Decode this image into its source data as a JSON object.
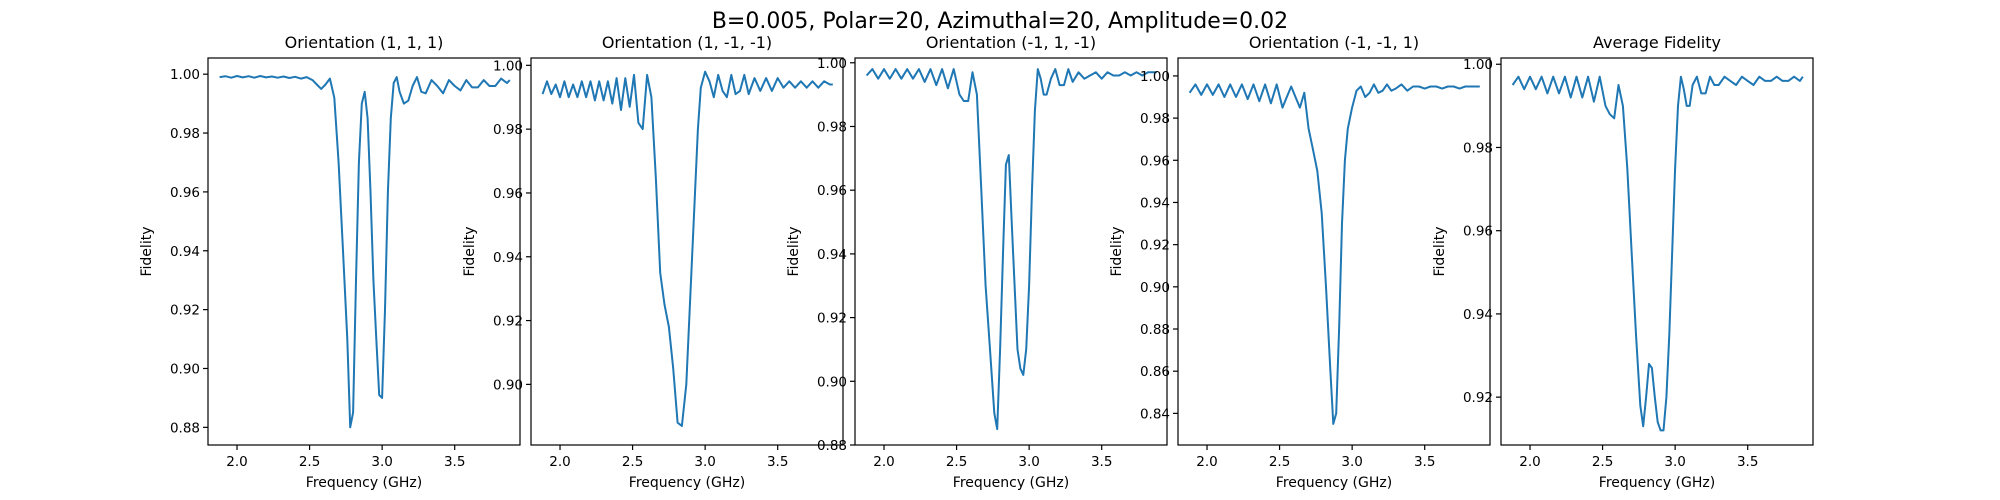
{
  "figure": {
    "suptitle": "B=0.005, Polar=20, Azimuthal=20, Amplitude=0.02"
  },
  "colors": {
    "series": "#1f77b4"
  },
  "chart_data": [
    {
      "type": "line",
      "title": "Orientation (1, 1, 1)",
      "xlabel": "Frequency (GHz)",
      "ylabel": "Fidelity",
      "xlim": [
        1.8,
        3.95
      ],
      "ylim": [
        0.874,
        1.0055
      ],
      "xticks": [
        2.0,
        2.5,
        3.0,
        3.5
      ],
      "xtick_labels": [
        "2.0",
        "2.5",
        "3.0",
        "3.5"
      ],
      "yticks": [
        0.88,
        0.9,
        0.92,
        0.94,
        0.96,
        0.98,
        1.0
      ],
      "ytick_labels": [
        "0.88",
        "0.90",
        "0.92",
        "0.94",
        "0.96",
        "0.98",
        "1.00"
      ],
      "grid": false,
      "x": [
        1.88,
        1.92,
        1.96,
        2.0,
        2.04,
        2.08,
        2.12,
        2.16,
        2.2,
        2.24,
        2.28,
        2.32,
        2.36,
        2.4,
        2.44,
        2.48,
        2.52,
        2.55,
        2.58,
        2.61,
        2.64,
        2.67,
        2.7,
        2.73,
        2.76,
        2.78,
        2.8,
        2.82,
        2.84,
        2.86,
        2.88,
        2.9,
        2.92,
        2.94,
        2.96,
        2.98,
        3.0,
        3.02,
        3.04,
        3.06,
        3.08,
        3.1,
        3.12,
        3.15,
        3.18,
        3.21,
        3.24,
        3.27,
        3.3,
        3.34,
        3.38,
        3.42,
        3.46,
        3.5,
        3.54,
        3.58,
        3.62,
        3.66,
        3.7,
        3.74,
        3.78,
        3.82,
        3.86,
        3.88
      ],
      "y": [
        0.999,
        0.9993,
        0.9988,
        0.9994,
        0.9989,
        0.9993,
        0.9988,
        0.9994,
        0.9989,
        0.9992,
        0.9988,
        0.9992,
        0.9987,
        0.9991,
        0.9985,
        0.999,
        0.998,
        0.9965,
        0.995,
        0.9965,
        0.9985,
        0.992,
        0.97,
        0.94,
        0.91,
        0.88,
        0.885,
        0.93,
        0.97,
        0.99,
        0.994,
        0.985,
        0.96,
        0.93,
        0.91,
        0.891,
        0.89,
        0.92,
        0.96,
        0.985,
        0.997,
        0.999,
        0.994,
        0.99,
        0.991,
        0.996,
        0.999,
        0.994,
        0.9935,
        0.998,
        0.996,
        0.9935,
        0.998,
        0.996,
        0.9945,
        0.998,
        0.9955,
        0.9955,
        0.998,
        0.996,
        0.996,
        0.9985,
        0.997,
        0.998
      ]
    },
    {
      "type": "line",
      "title": "Orientation (1, -1, -1)",
      "xlabel": "Frequency (GHz)",
      "ylabel": "Fidelity",
      "xlim": [
        1.8,
        3.95
      ],
      "ylim": [
        0.881,
        1.0023
      ],
      "xticks": [
        2.0,
        2.5,
        3.0,
        3.5
      ],
      "xtick_labels": [
        "2.0",
        "2.5",
        "3.0",
        "3.5"
      ],
      "yticks": [
        0.9,
        0.92,
        0.94,
        0.96,
        0.98,
        1.0
      ],
      "ytick_labels": [
        "0.90",
        "0.92",
        "0.94",
        "0.96",
        "0.98",
        "1.00"
      ],
      "grid": false,
      "x": [
        1.88,
        1.91,
        1.94,
        1.97,
        2.0,
        2.03,
        2.06,
        2.09,
        2.12,
        2.15,
        2.18,
        2.21,
        2.24,
        2.27,
        2.3,
        2.33,
        2.36,
        2.39,
        2.42,
        2.45,
        2.48,
        2.51,
        2.54,
        2.57,
        2.6,
        2.63,
        2.66,
        2.69,
        2.72,
        2.75,
        2.78,
        2.81,
        2.84,
        2.87,
        2.89,
        2.91,
        2.93,
        2.95,
        2.97,
        3.0,
        3.03,
        3.06,
        3.09,
        3.12,
        3.15,
        3.18,
        3.21,
        3.24,
        3.27,
        3.3,
        3.34,
        3.38,
        3.42,
        3.46,
        3.5,
        3.54,
        3.58,
        3.62,
        3.66,
        3.7,
        3.74,
        3.78,
        3.82,
        3.86,
        3.88
      ],
      "y": [
        0.991,
        0.995,
        0.991,
        0.994,
        0.99,
        0.995,
        0.99,
        0.994,
        0.99,
        0.995,
        0.99,
        0.995,
        0.989,
        0.995,
        0.989,
        0.995,
        0.988,
        0.996,
        0.986,
        0.996,
        0.987,
        0.997,
        0.982,
        0.98,
        0.997,
        0.99,
        0.965,
        0.935,
        0.925,
        0.918,
        0.905,
        0.888,
        0.887,
        0.9,
        0.92,
        0.94,
        0.96,
        0.98,
        0.993,
        0.998,
        0.995,
        0.99,
        0.997,
        0.992,
        0.99,
        0.997,
        0.991,
        0.992,
        0.997,
        0.991,
        0.996,
        0.992,
        0.996,
        0.992,
        0.996,
        0.993,
        0.995,
        0.993,
        0.995,
        0.993,
        0.995,
        0.993,
        0.995,
        0.994,
        0.994
      ]
    },
    {
      "type": "line",
      "title": "Orientation (-1, 1, -1)",
      "xlabel": "Frequency (GHz)",
      "ylabel": "Fidelity",
      "xlim": [
        1.8,
        3.95
      ],
      "ylim": [
        0.88,
        1.0015
      ],
      "xticks": [
        2.0,
        2.5,
        3.0,
        3.5
      ],
      "xtick_labels": [
        "2.0",
        "2.5",
        "3.0",
        "3.5"
      ],
      "yticks": [
        0.88,
        0.9,
        0.92,
        0.94,
        0.96,
        0.98,
        1.0
      ],
      "ytick_labels": [
        "0.88",
        "0.90",
        "0.92",
        "0.94",
        "0.96",
        "0.98",
        "1.00"
      ],
      "grid": false,
      "x": [
        1.88,
        1.92,
        1.96,
        2.0,
        2.04,
        2.08,
        2.12,
        2.16,
        2.2,
        2.24,
        2.28,
        2.32,
        2.36,
        2.4,
        2.44,
        2.48,
        2.52,
        2.55,
        2.58,
        2.61,
        2.64,
        2.67,
        2.7,
        2.73,
        2.76,
        2.78,
        2.8,
        2.82,
        2.84,
        2.86,
        2.88,
        2.9,
        2.92,
        2.94,
        2.96,
        2.98,
        3.0,
        3.02,
        3.04,
        3.06,
        3.08,
        3.1,
        3.12,
        3.15,
        3.18,
        3.21,
        3.24,
        3.27,
        3.3,
        3.34,
        3.38,
        3.42,
        3.46,
        3.5,
        3.54,
        3.58,
        3.62,
        3.66,
        3.7,
        3.74,
        3.78,
        3.82,
        3.86,
        3.88
      ],
      "y": [
        0.996,
        0.998,
        0.995,
        0.998,
        0.995,
        0.998,
        0.995,
        0.998,
        0.995,
        0.998,
        0.994,
        0.998,
        0.993,
        0.998,
        0.992,
        0.998,
        0.99,
        0.988,
        0.988,
        0.997,
        0.99,
        0.96,
        0.93,
        0.91,
        0.89,
        0.885,
        0.91,
        0.94,
        0.968,
        0.971,
        0.95,
        0.93,
        0.91,
        0.904,
        0.902,
        0.91,
        0.93,
        0.96,
        0.985,
        0.998,
        0.995,
        0.99,
        0.99,
        0.995,
        0.998,
        0.993,
        0.993,
        0.998,
        0.994,
        0.997,
        0.995,
        0.996,
        0.997,
        0.995,
        0.997,
        0.996,
        0.996,
        0.997,
        0.996,
        0.997,
        0.996,
        0.997,
        0.997,
        0.997
      ]
    },
    {
      "type": "line",
      "title": "Orientation (-1, -1, 1)",
      "xlabel": "Frequency (GHz)",
      "ylabel": "Fidelity",
      "xlim": [
        1.8,
        3.95
      ],
      "ylim": [
        0.825,
        1.0085
      ],
      "xticks": [
        2.0,
        2.5,
        3.0,
        3.5
      ],
      "xtick_labels": [
        "2.0",
        "2.5",
        "3.0",
        "3.5"
      ],
      "yticks": [
        0.84,
        0.86,
        0.88,
        0.9,
        0.92,
        0.94,
        0.96,
        0.98,
        1.0
      ],
      "ytick_labels": [
        "0.84",
        "0.86",
        "0.88",
        "0.90",
        "0.92",
        "0.94",
        "0.96",
        "0.98",
        "1.00"
      ],
      "grid": false,
      "x": [
        1.88,
        1.92,
        1.96,
        2.0,
        2.04,
        2.08,
        2.12,
        2.16,
        2.2,
        2.24,
        2.28,
        2.32,
        2.36,
        2.4,
        2.44,
        2.48,
        2.52,
        2.55,
        2.58,
        2.61,
        2.64,
        2.67,
        2.7,
        2.73,
        2.76,
        2.79,
        2.82,
        2.85,
        2.87,
        2.89,
        2.91,
        2.93,
        2.95,
        2.97,
        3.0,
        3.03,
        3.06,
        3.09,
        3.12,
        3.15,
        3.18,
        3.21,
        3.24,
        3.27,
        3.3,
        3.34,
        3.38,
        3.42,
        3.46,
        3.5,
        3.54,
        3.58,
        3.62,
        3.66,
        3.7,
        3.74,
        3.78,
        3.82,
        3.86,
        3.88
      ],
      "y": [
        0.992,
        0.996,
        0.991,
        0.996,
        0.991,
        0.996,
        0.99,
        0.996,
        0.99,
        0.996,
        0.989,
        0.996,
        0.988,
        0.996,
        0.987,
        0.996,
        0.985,
        0.99,
        0.995,
        0.99,
        0.985,
        0.992,
        0.975,
        0.965,
        0.955,
        0.935,
        0.9,
        0.86,
        0.835,
        0.84,
        0.88,
        0.93,
        0.96,
        0.975,
        0.985,
        0.993,
        0.995,
        0.99,
        0.992,
        0.996,
        0.992,
        0.993,
        0.996,
        0.993,
        0.994,
        0.996,
        0.993,
        0.995,
        0.995,
        0.994,
        0.995,
        0.995,
        0.994,
        0.995,
        0.995,
        0.994,
        0.995,
        0.995,
        0.995,
        0.995
      ]
    },
    {
      "type": "line",
      "title": "Average Fidelity",
      "xlabel": "Frequency (GHz)",
      "ylabel": "Fidelity",
      "xlim": [
        1.8,
        3.95
      ],
      "ylim": [
        0.9085,
        1.0015
      ],
      "xticks": [
        2.0,
        2.5,
        3.0,
        3.5
      ],
      "xtick_labels": [
        "2.0",
        "2.5",
        "3.0",
        "3.5"
      ],
      "yticks": [
        0.92,
        0.94,
        0.96,
        0.98,
        1.0
      ],
      "ytick_labels": [
        "0.92",
        "0.94",
        "0.96",
        "0.98",
        "1.00"
      ],
      "grid": false,
      "x": [
        1.88,
        1.92,
        1.96,
        2.0,
        2.04,
        2.08,
        2.12,
        2.16,
        2.2,
        2.24,
        2.28,
        2.32,
        2.36,
        2.4,
        2.44,
        2.48,
        2.52,
        2.55,
        2.58,
        2.61,
        2.64,
        2.67,
        2.7,
        2.73,
        2.76,
        2.78,
        2.8,
        2.82,
        2.84,
        2.86,
        2.88,
        2.9,
        2.92,
        2.94,
        2.96,
        2.98,
        3.0,
        3.02,
        3.04,
        3.06,
        3.08,
        3.1,
        3.12,
        3.15,
        3.18,
        3.21,
        3.24,
        3.27,
        3.3,
        3.34,
        3.38,
        3.42,
        3.46,
        3.5,
        3.54,
        3.58,
        3.62,
        3.66,
        3.7,
        3.74,
        3.78,
        3.82,
        3.86,
        3.88
      ],
      "y": [
        0.995,
        0.997,
        0.994,
        0.997,
        0.994,
        0.997,
        0.993,
        0.997,
        0.993,
        0.997,
        0.992,
        0.997,
        0.992,
        0.997,
        0.991,
        0.997,
        0.99,
        0.988,
        0.987,
        0.995,
        0.99,
        0.975,
        0.955,
        0.935,
        0.918,
        0.913,
        0.92,
        0.928,
        0.927,
        0.92,
        0.914,
        0.912,
        0.912,
        0.92,
        0.935,
        0.955,
        0.975,
        0.99,
        0.997,
        0.994,
        0.99,
        0.99,
        0.995,
        0.997,
        0.993,
        0.993,
        0.997,
        0.995,
        0.995,
        0.997,
        0.996,
        0.995,
        0.997,
        0.996,
        0.995,
        0.997,
        0.996,
        0.996,
        0.997,
        0.996,
        0.996,
        0.997,
        0.996,
        0.997
      ]
    }
  ]
}
